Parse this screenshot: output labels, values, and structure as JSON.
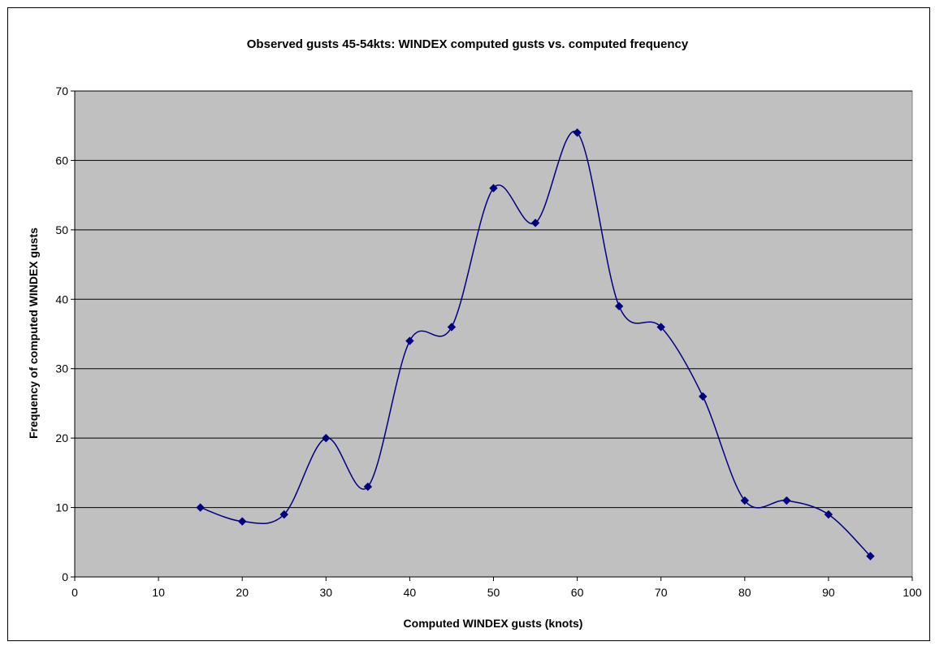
{
  "chart_data": {
    "type": "scatter",
    "title": "Observed gusts 45-54kts: WINDEX computed gusts vs. computed frequency",
    "xlabel": "Computed WINDEX gusts (knots)",
    "ylabel": "Frequency of computed WINDEX gusts",
    "xlim": [
      0,
      100
    ],
    "ylim": [
      0,
      70
    ],
    "xticks": [
      0,
      10,
      20,
      30,
      40,
      50,
      60,
      70,
      80,
      90,
      100
    ],
    "yticks": [
      0,
      10,
      20,
      30,
      40,
      50,
      60,
      70
    ],
    "grid": "horizontal",
    "smoothed_line": true,
    "legend": "none",
    "series": [
      {
        "x": [
          15,
          20,
          25,
          30,
          35,
          40,
          45,
          50,
          55,
          60,
          65,
          70,
          75,
          80,
          85,
          90,
          95
        ],
        "y": [
          10,
          8,
          9,
          20,
          13,
          34,
          36,
          56,
          51,
          64,
          39,
          36,
          26,
          11,
          11,
          9,
          3
        ]
      }
    ]
  },
  "colors": {
    "plot_background": "#c0c0c0",
    "series_line": "#000080",
    "gridline": "#000000"
  }
}
